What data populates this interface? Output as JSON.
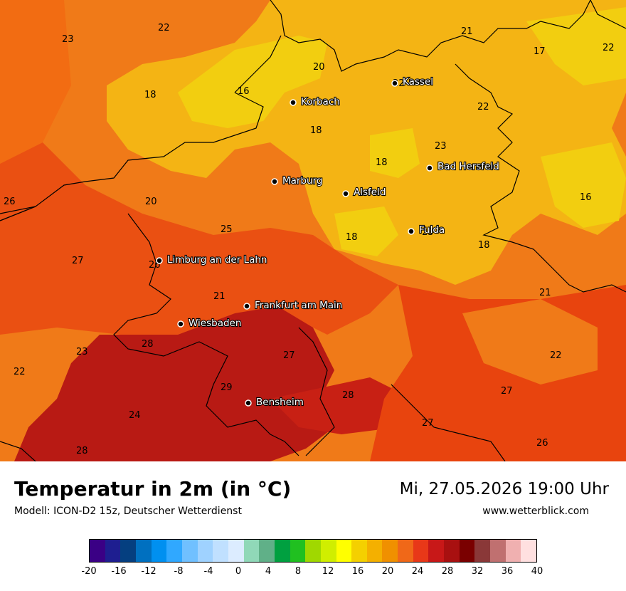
{
  "title": "Temperatur in 2m (in °C)",
  "subtitle": "Modell: ICON-D2 15z, Deutscher Wetterdienst",
  "datetime": "Mi, 27.05.2026 19:00 Uhr",
  "website": "www.wetterblick.com",
  "cities": [
    {
      "name": "Kassel"
    },
    {
      "name": "Korbach"
    },
    {
      "name": "Bad Hersfeld"
    },
    {
      "name": "Marburg"
    },
    {
      "name": "Alsfeld"
    },
    {
      "name": "Fulda"
    },
    {
      "name": "Limburg an der Lahn"
    },
    {
      "name": "Frankfurt am Main"
    },
    {
      "name": "Wiesbaden"
    },
    {
      "name": "Bensheim"
    }
  ],
  "values": [
    "22",
    "23",
    "21",
    "17",
    "22",
    "18",
    "16",
    "20",
    "22",
    "22",
    "18",
    "23",
    "18",
    "26",
    "20",
    "16",
    "25",
    "18",
    "23",
    "27",
    "26",
    "18",
    "21",
    "21",
    "23",
    "28",
    "27",
    "22",
    "22",
    "29",
    "28",
    "27",
    "24",
    "27",
    "28",
    "26"
  ],
  "legend": {
    "colors": [
      "#3a0085",
      "#1e1e90",
      "#053f80",
      "#0070c0",
      "#0090f0",
      "#30a8ff",
      "#70c0ff",
      "#9fd2ff",
      "#c0e0ff",
      "#dcecff",
      "#90d8b8",
      "#60b088",
      "#00a040",
      "#20c020",
      "#a0d800",
      "#d0ee00",
      "#ffff00",
      "#f4d000",
      "#f4b000",
      "#f09000",
      "#f06818",
      "#e83818",
      "#c81818",
      "#a81010",
      "#7a0000",
      "#8a3838",
      "#c07070",
      "#f0b0b0",
      "#ffe0e0"
    ],
    "ticks": [
      "-20",
      "-16",
      "-12",
      "-8",
      "-4",
      "0",
      "4",
      "8",
      "12",
      "16",
      "20",
      "24",
      "28",
      "32",
      "36",
      "40"
    ]
  }
}
